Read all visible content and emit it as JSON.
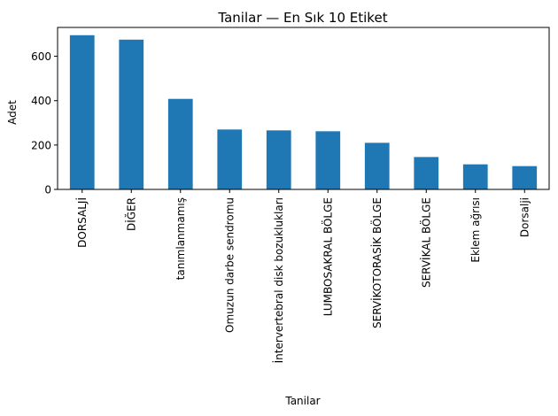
{
  "chart_data": {
    "type": "bar",
    "title": "Tanilar — En Sık 10 Etiket",
    "xlabel": "Tanilar",
    "ylabel": "Adet",
    "categories": [
      "DORSALJİ",
      "DİĞER",
      "tanımlanmamış",
      "Omuzun darbe sendromu",
      "İntervertebral disk bozuklukları",
      "LUMBOSAKRAL BÖLGE",
      "SERVİKOTORASİK BÖLGE",
      "SERVİKAL BÖLGE",
      "Eklem ağrısı",
      "Dorsalji"
    ],
    "values": [
      695,
      675,
      408,
      270,
      266,
      262,
      210,
      146,
      113,
      105
    ],
    "ylim": [
      0,
      730
    ],
    "yticks": [
      0,
      200,
      400,
      600
    ],
    "grid": false,
    "legend": false,
    "bar_color": "#1f77b4"
  }
}
